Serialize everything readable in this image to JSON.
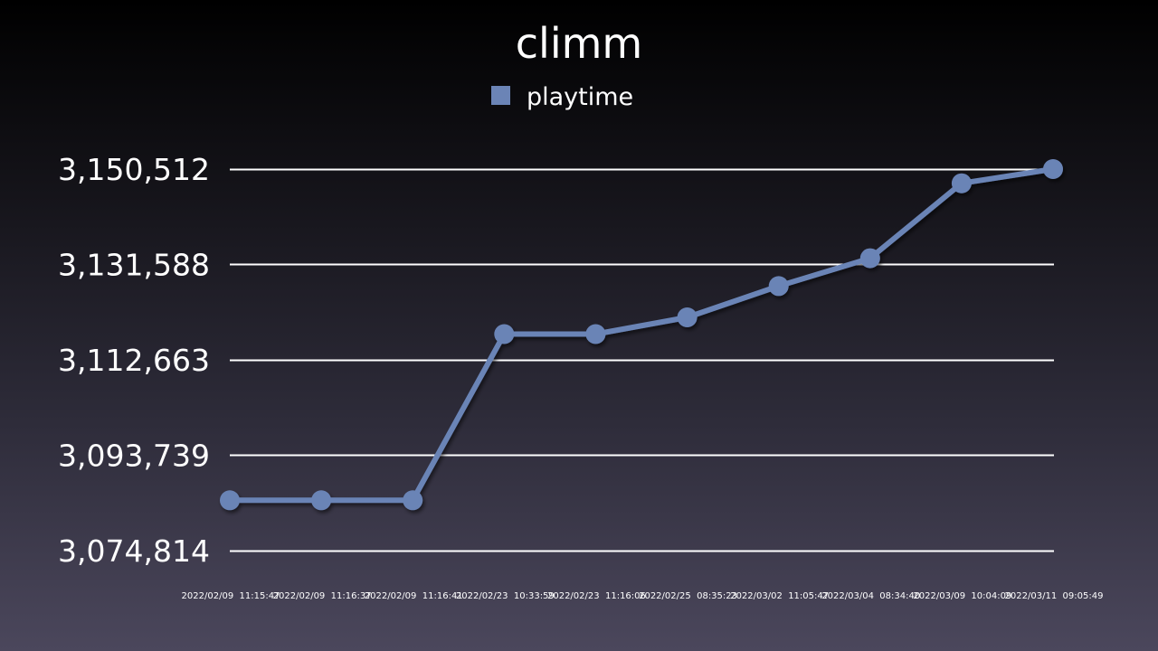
{
  "chart_data": {
    "type": "line",
    "title": "climm",
    "legend": {
      "position": "top",
      "entries": [
        "playtime"
      ]
    },
    "series": [
      {
        "name": "playtime",
        "color": "#6b84b6",
        "values": [
          3084800,
          3084800,
          3084800,
          3117780,
          3117780,
          3121100,
          3127300,
          3132820,
          3147700,
          3150512
        ]
      }
    ],
    "categories": [
      "2022/02/09  11:15:47",
      "2022/02/09  11:16:37",
      "2022/02/09  11:16:41",
      "2022/02/23  10:33:59",
      "2022/02/23  11:16:06",
      "2022/02/25  08:35:23",
      "2022/03/02  11:05:47",
      "2022/03/04  08:34:40",
      "2022/03/09  10:04:09",
      "2022/03/11  09:05:49"
    ],
    "yticks": [
      3074814,
      3093739,
      3112663,
      3131588,
      3150512
    ],
    "ytick_labels": [
      "3,074,814",
      "3,093,739",
      "3,112,663",
      "3,131,588",
      "3,150,512"
    ],
    "ylim": [
      3074814,
      3150512
    ],
    "grid": true,
    "xlabel": "",
    "ylabel": ""
  }
}
